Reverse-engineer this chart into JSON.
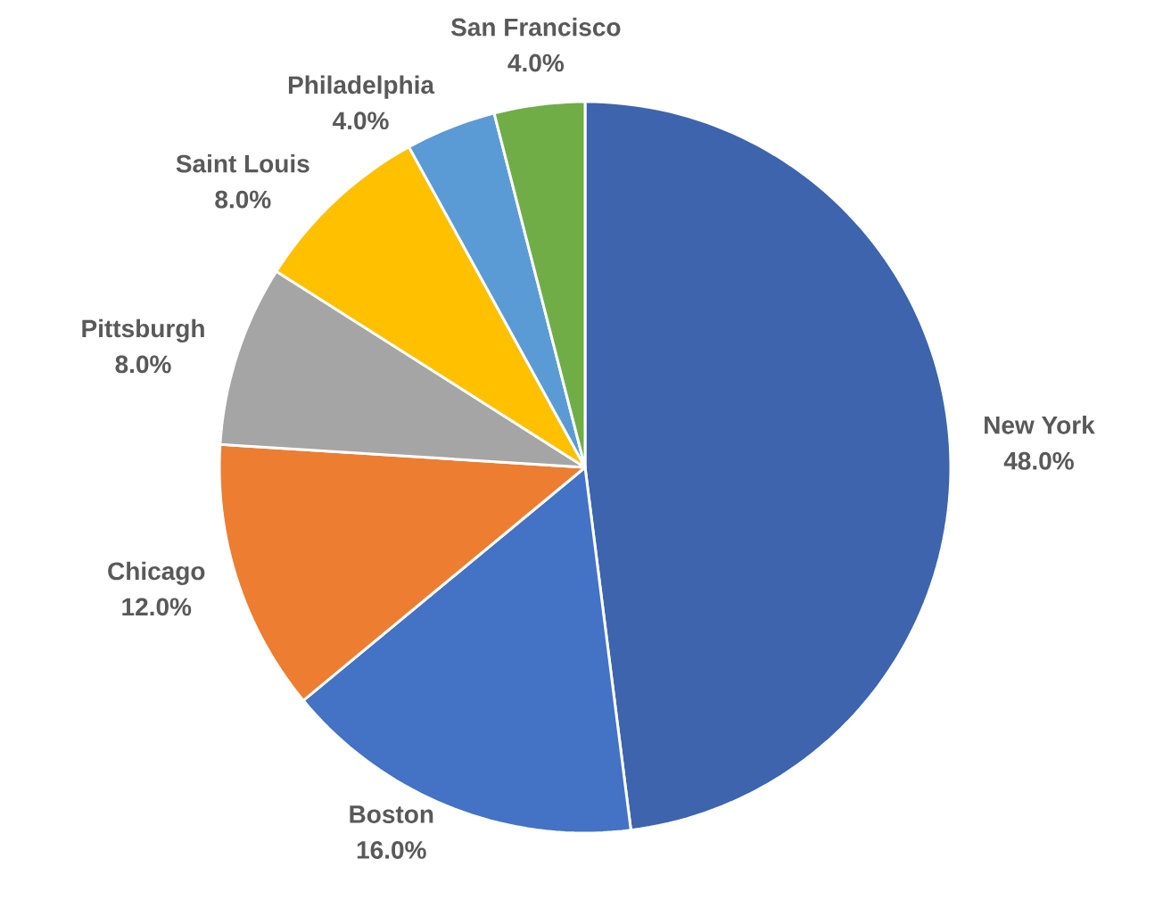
{
  "chart_data": {
    "type": "pie",
    "categories": [
      "New York",
      "Boston",
      "Chicago",
      "Pittsburgh",
      "Saint Louis",
      "Philadelphia",
      "San Francisco"
    ],
    "values": [
      48,
      16,
      12,
      8,
      8,
      4,
      4
    ],
    "value_labels": [
      "48.0%",
      "16.0%",
      "12.0%",
      "8.0%",
      "8.0%",
      "4.0%",
      "4.0%"
    ],
    "colors": [
      "#3d64ad",
      "#4472c4",
      "#ed7d31",
      "#a5a5a5",
      "#ffc000",
      "#5b9bd5",
      "#70ad47"
    ]
  }
}
